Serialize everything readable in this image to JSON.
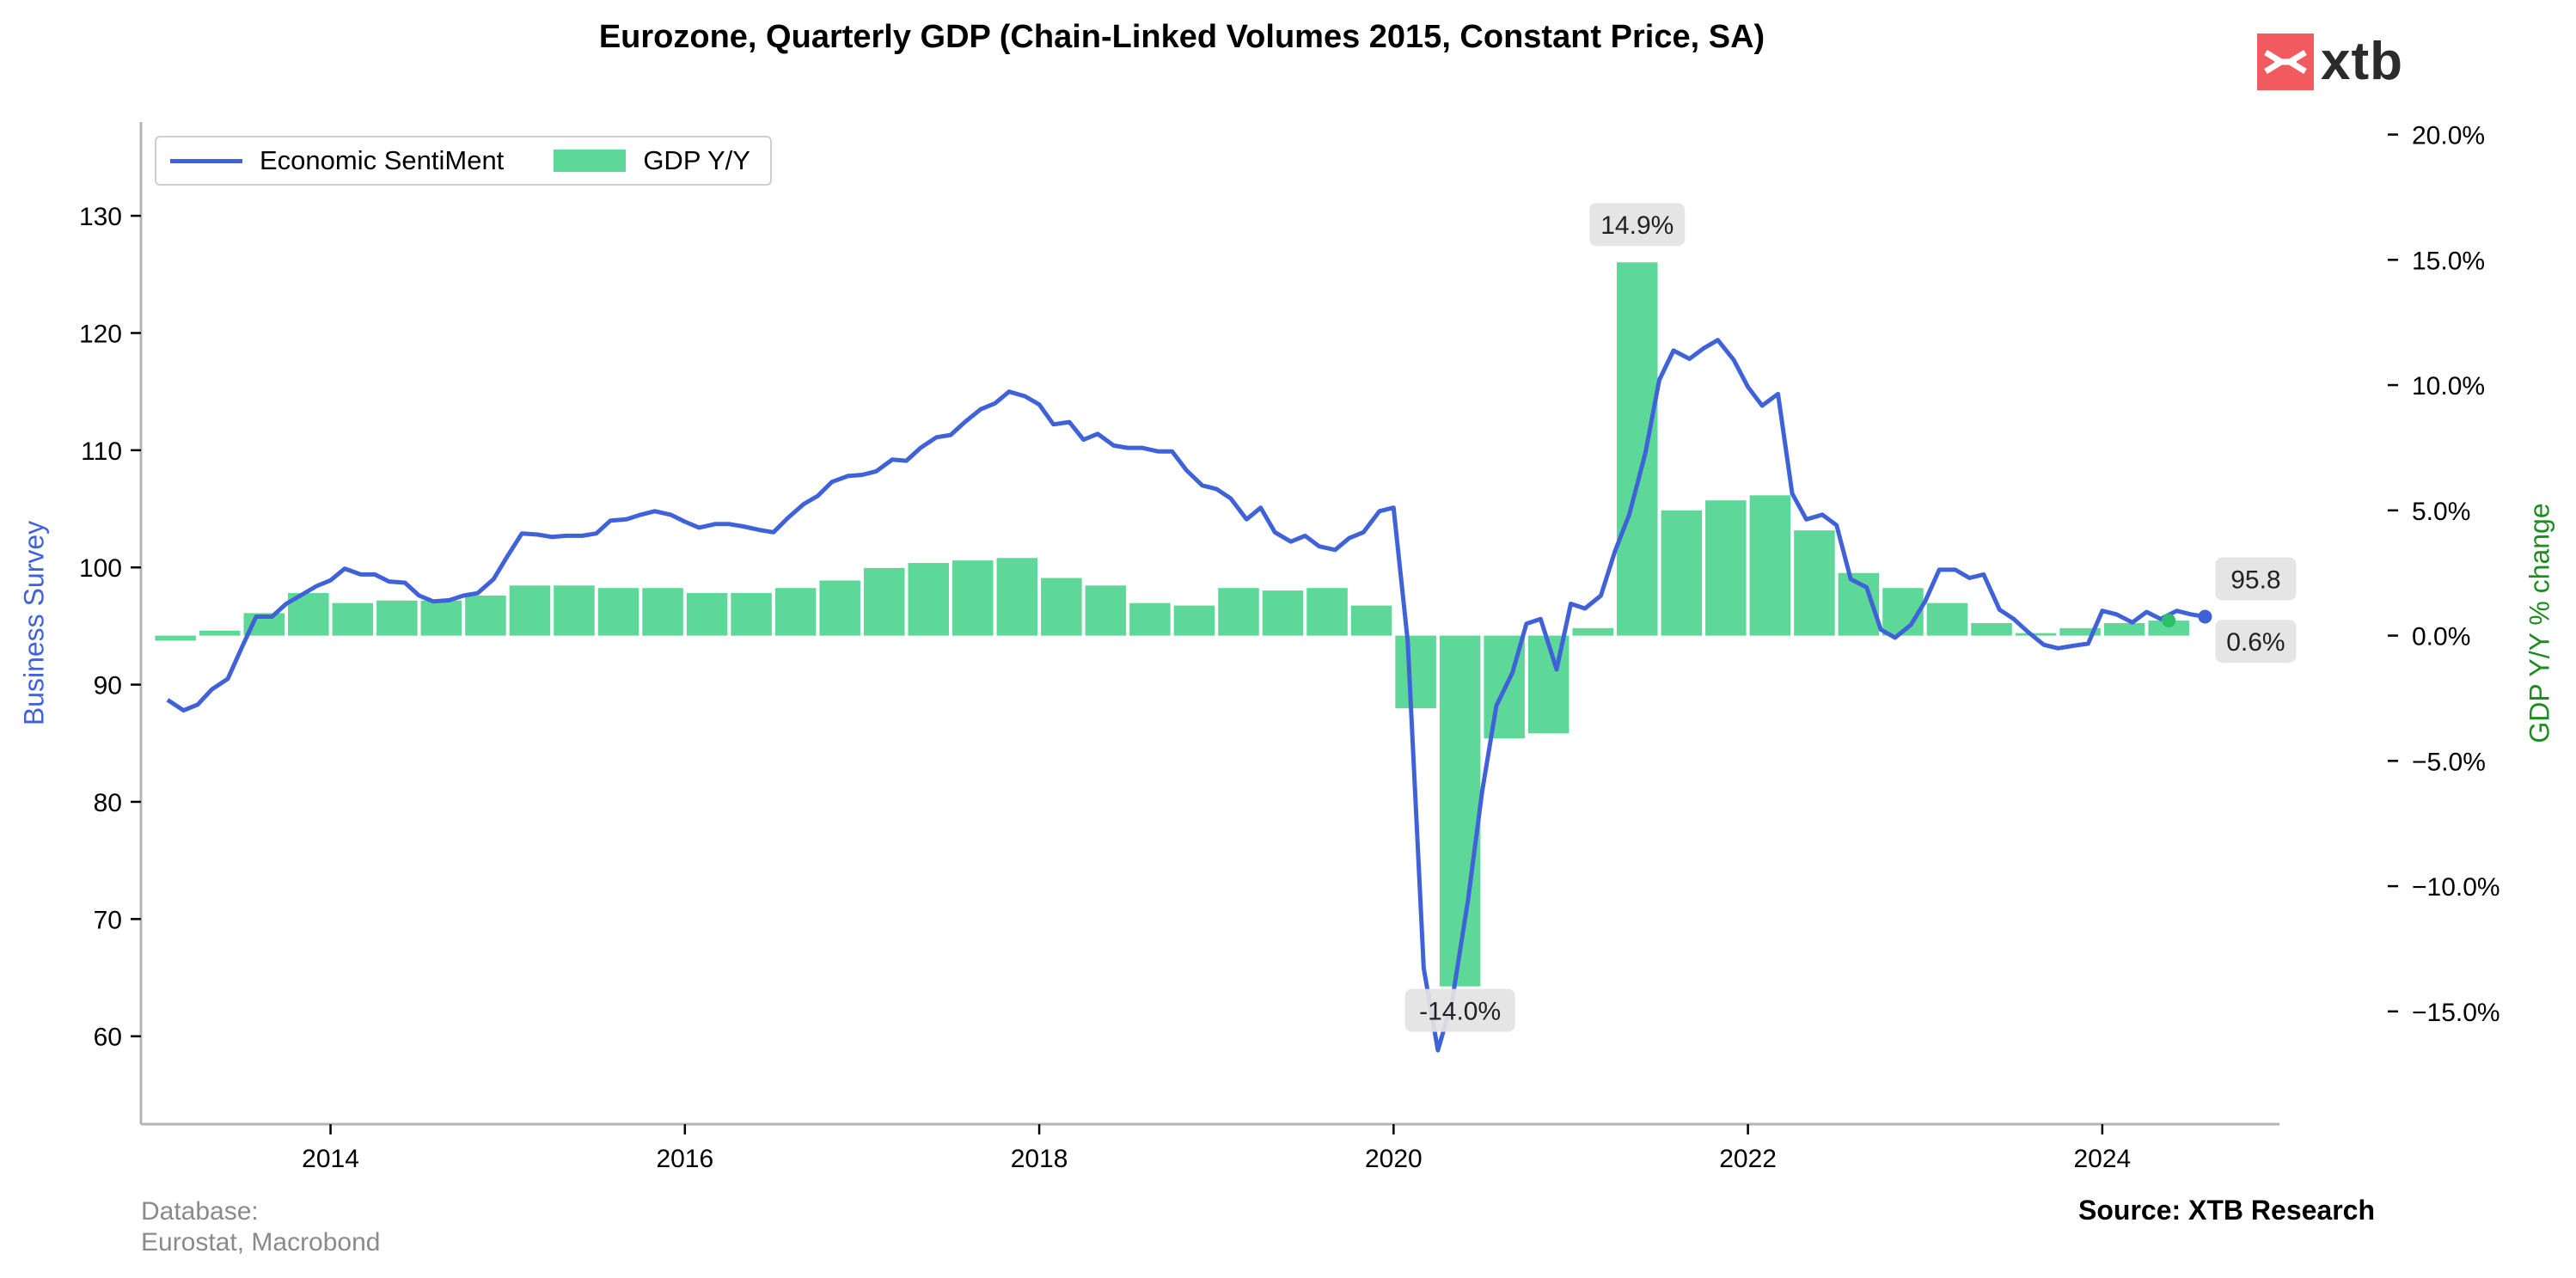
{
  "chart_data": {
    "type": "bar+line",
    "title": "Eurozone, Quarterly GDP (Chain-Linked Volumes 2015, Constant Price, SA)",
    "legend": {
      "placement": "top-left",
      "entries": [
        "Economic SentiMent",
        "GDP Y/Y"
      ]
    },
    "left_axis": {
      "label": "Business Survey",
      "ylim": [
        52.5,
        138
      ],
      "ticks": [
        "60",
        "70",
        "80",
        "90",
        "100",
        "110",
        "120",
        "130"
      ],
      "tick_values": [
        60,
        70,
        80,
        90,
        100,
        110,
        120,
        130
      ],
      "color": "#4062d8"
    },
    "right_axis": {
      "label": "GDP Y/Y % change",
      "ylim": [
        -19.5,
        20.5
      ],
      "ticks": [
        "20.0%",
        "15.0%",
        "10.0%",
        "5.0%",
        "0.0%",
        "−5.0%",
        "−10.0%",
        "−15.0%"
      ],
      "tick_values": [
        20,
        15,
        10,
        5,
        0,
        -5,
        -10,
        -15
      ],
      "color": "#1e8c1e"
    },
    "x_axis": {
      "range": [
        2012.93,
        2025.0
      ],
      "ticks": [
        "2014",
        "2016",
        "2018",
        "2020",
        "2022",
        "2024"
      ],
      "tick_values": [
        2014,
        2016,
        2018,
        2020,
        2022,
        2024
      ]
    },
    "grid": false,
    "series": [
      {
        "name": "Economic SentiMent",
        "kind": "line",
        "color": "#4062d8",
        "x": [
          2013.08,
          2013.17,
          2013.25,
          2013.33,
          2013.42,
          2013.5,
          2013.58,
          2013.67,
          2013.75,
          2013.83,
          2013.92,
          2014.0,
          2014.08,
          2014.17,
          2014.25,
          2014.33,
          2014.42,
          2014.5,
          2014.58,
          2014.67,
          2014.75,
          2014.83,
          2014.92,
          2015.0,
          2015.08,
          2015.17,
          2015.25,
          2015.33,
          2015.42,
          2015.5,
          2015.58,
          2015.67,
          2015.75,
          2015.83,
          2015.92,
          2016.0,
          2016.08,
          2016.17,
          2016.25,
          2016.33,
          2016.42,
          2016.5,
          2016.58,
          2016.67,
          2016.75,
          2016.83,
          2016.92,
          2017.0,
          2017.08,
          2017.17,
          2017.25,
          2017.33,
          2017.42,
          2017.5,
          2017.58,
          2017.67,
          2017.75,
          2017.83,
          2017.92,
          2018.0,
          2018.08,
          2018.17,
          2018.25,
          2018.33,
          2018.42,
          2018.5,
          2018.58,
          2018.67,
          2018.75,
          2018.83,
          2018.92,
          2019.0,
          2019.08,
          2019.17,
          2019.25,
          2019.33,
          2019.42,
          2019.5,
          2019.58,
          2019.67,
          2019.75,
          2019.83,
          2019.92,
          2020.0,
          2020.08,
          2020.17,
          2020.25,
          2020.33,
          2020.42,
          2020.5,
          2020.58,
          2020.67,
          2020.75,
          2020.83,
          2020.92,
          2021.0,
          2021.08,
          2021.17,
          2021.25,
          2021.33,
          2021.42,
          2021.5,
          2021.58,
          2021.67,
          2021.75,
          2021.83,
          2021.92,
          2022.0,
          2022.08,
          2022.17,
          2022.25,
          2022.33,
          2022.42,
          2022.5,
          2022.58,
          2022.67,
          2022.75,
          2022.83,
          2022.92,
          2023.0,
          2023.08,
          2023.17,
          2023.25,
          2023.33,
          2023.42,
          2023.5,
          2023.58,
          2023.67,
          2023.75,
          2023.83,
          2023.92,
          2024.0,
          2024.08,
          2024.17,
          2024.25,
          2024.33,
          2024.42,
          2024.5,
          2024.58
        ],
        "values": [
          88.7,
          87.8,
          88.3,
          89.6,
          90.5,
          93.2,
          95.8,
          95.8,
          96.9,
          97.6,
          98.4,
          98.9,
          99.9,
          99.4,
          99.4,
          98.8,
          98.7,
          97.6,
          97.1,
          97.2,
          97.6,
          97.8,
          99.0,
          101.0,
          102.9,
          102.8,
          102.6,
          102.7,
          102.7,
          102.9,
          104.0,
          104.1,
          104.5,
          104.8,
          104.5,
          103.9,
          103.4,
          103.7,
          103.7,
          103.5,
          103.2,
          103.0,
          104.2,
          105.4,
          106.1,
          107.3,
          107.8,
          107.9,
          108.2,
          109.2,
          109.1,
          110.2,
          111.1,
          111.3,
          112.4,
          113.5,
          114.0,
          115.0,
          114.6,
          113.9,
          112.2,
          112.4,
          110.9,
          111.4,
          110.4,
          110.2,
          110.2,
          109.9,
          109.9,
          108.3,
          107.0,
          106.7,
          105.9,
          104.1,
          105.1,
          103.0,
          102.2,
          102.7,
          101.8,
          101.5,
          102.5,
          103.0,
          104.8,
          105.1,
          93.7,
          65.8,
          58.8,
          63.0,
          71.6,
          80.9,
          88.2,
          91.0,
          95.2,
          95.6,
          91.3,
          96.9,
          96.5,
          97.6,
          101.4,
          104.5,
          109.7,
          116.0,
          118.5,
          117.8,
          118.7,
          119.4,
          117.7,
          115.4,
          113.8,
          114.8,
          106.3,
          104.1,
          104.5,
          103.6,
          99.0,
          98.3,
          94.7,
          94.0,
          95.1,
          97.1,
          99.8,
          99.8,
          99.1,
          99.4,
          96.4,
          95.6,
          94.5,
          93.4,
          93.1,
          93.3,
          93.5,
          96.3,
          96.0,
          95.3,
          96.2,
          95.6,
          96.3,
          96.0,
          95.8
        ],
        "last_label": "95.8"
      },
      {
        "name": "GDP Y/Y",
        "kind": "bar",
        "color": "#5ed899",
        "x": [
          2013.125,
          2013.375,
          2013.625,
          2013.875,
          2014.125,
          2014.375,
          2014.625,
          2014.875,
          2015.125,
          2015.375,
          2015.625,
          2015.875,
          2016.125,
          2016.375,
          2016.625,
          2016.875,
          2017.125,
          2017.375,
          2017.625,
          2017.875,
          2018.125,
          2018.375,
          2018.625,
          2018.875,
          2019.125,
          2019.375,
          2019.625,
          2019.875,
          2020.125,
          2020.375,
          2020.625,
          2020.875,
          2021.125,
          2021.375,
          2021.625,
          2021.875,
          2022.125,
          2022.375,
          2022.625,
          2022.875,
          2023.125,
          2023.375,
          2023.625,
          2023.875,
          2024.125,
          2024.375
        ],
        "values": [
          -0.2,
          0.2,
          0.9,
          1.7,
          1.3,
          1.4,
          1.4,
          1.6,
          2.0,
          2.0,
          1.9,
          1.9,
          1.7,
          1.7,
          1.9,
          2.2,
          2.7,
          2.9,
          3.0,
          3.1,
          2.3,
          2.0,
          1.3,
          1.2,
          1.9,
          1.8,
          1.9,
          1.2,
          -2.9,
          -14.0,
          -4.1,
          -3.9,
          0.3,
          14.9,
          5.0,
          5.4,
          5.6,
          4.2,
          2.5,
          1.9,
          1.3,
          0.5,
          0.1,
          0.3,
          0.5,
          0.6
        ],
        "last_label": "0.6%"
      }
    ],
    "annotations": [
      {
        "text": "14.9%",
        "series": "GDP Y/Y",
        "x": 2021.375,
        "value": 14.9
      },
      {
        "text": "-14.0%",
        "series": "GDP Y/Y",
        "x": 2020.375,
        "value": -14.0
      },
      {
        "text": "95.8",
        "series": "Economic SentiMent",
        "x": 2024.58,
        "value": 95.8
      },
      {
        "text": "0.6%",
        "series": "GDP Y/Y",
        "x": 2024.375,
        "value": 0.6
      }
    ]
  },
  "footer": {
    "database_label": "Database:",
    "database_value": "Eurostat, Macrobond",
    "source": "Source: XTB Research"
  },
  "brand": {
    "logo_text": "xtb",
    "color": "#f15a5e"
  }
}
